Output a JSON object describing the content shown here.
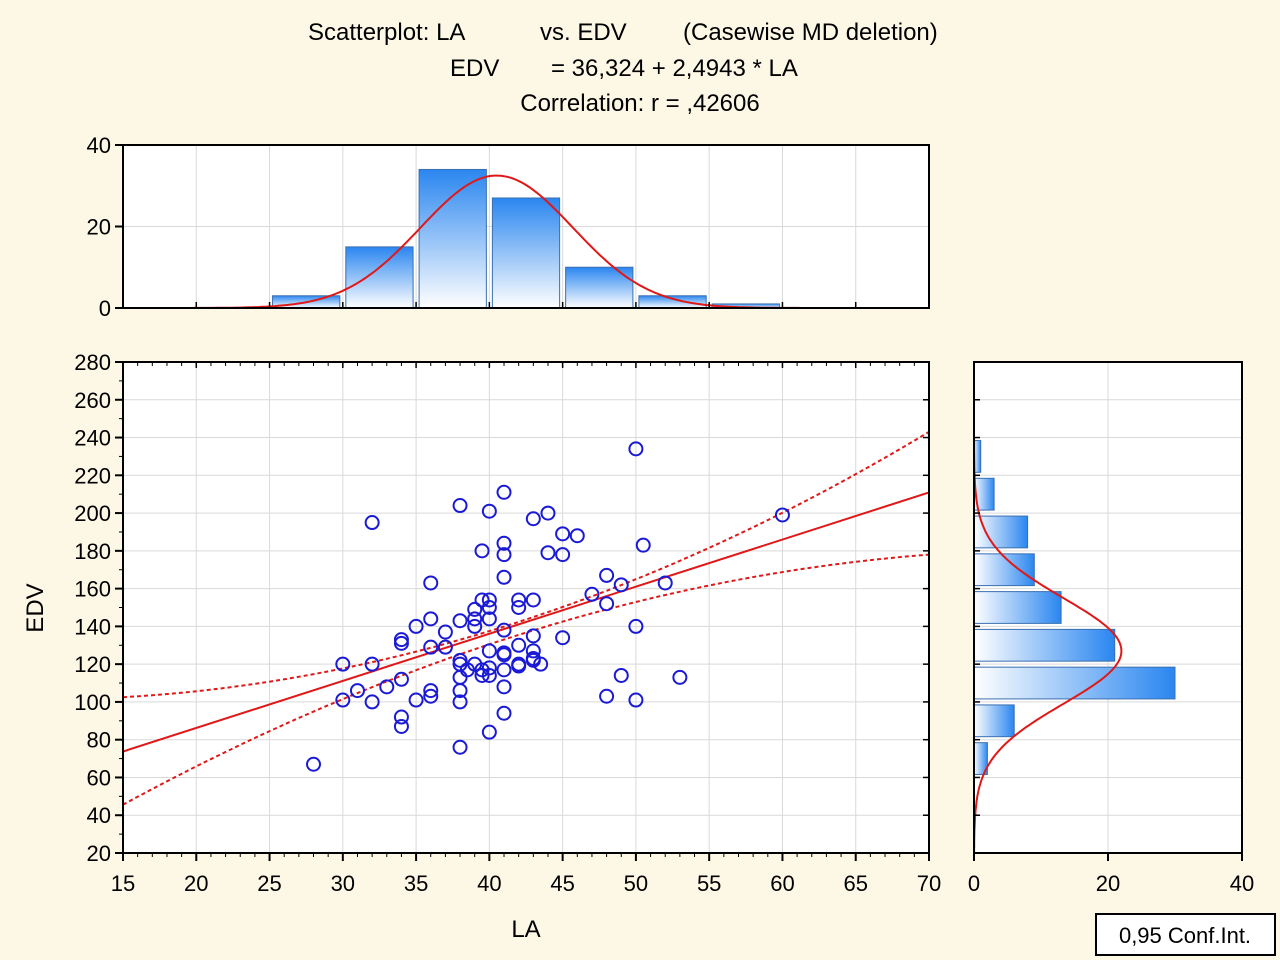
{
  "title": {
    "line1_part1": "Scatterplot: LA",
    "line1_part2": "vs. EDV",
    "line1_part3": "(Casewise MD deletion)",
    "line2_part1": "EDV",
    "line2_part2": "= 36,324 + 2,4943 * LA",
    "line3": "Correlation: r = ,42606"
  },
  "legend_box": {
    "label": "0,95 Conf.Int."
  },
  "colors": {
    "background": "#fdf8e6",
    "points": "#1a1ad6",
    "fit_line": "#e01818",
    "bar_top": "#2a86f0",
    "bar_bottom": "#ffffff",
    "bar_stroke": "#3a6fb0",
    "grid": "#d9d9d9"
  },
  "chart_data": [
    {
      "type": "scatter",
      "xlabel": "LA",
      "ylabel": "EDV",
      "xlim": [
        15,
        70
      ],
      "ylim": [
        20,
        280
      ],
      "xticks": [
        "15",
        "20",
        "25",
        "30",
        "35",
        "40",
        "45",
        "50",
        "55",
        "60",
        "65",
        "70"
      ],
      "yticks": [
        "20",
        "40",
        "60",
        "80",
        "100",
        "120",
        "140",
        "160",
        "180",
        "200",
        "220",
        "240",
        "260",
        "280"
      ],
      "grid": true,
      "regression": {
        "intercept": 36.324,
        "slope": 2.4943,
        "r": 0.42606
      },
      "confidence_band": {
        "level": 0.95,
        "lower": [
          [
            15,
            45.6
          ],
          [
            40,
            130.5
          ],
          [
            70,
            178
          ]
        ],
        "upper": [
          [
            15,
            102.5
          ],
          [
            40,
            137.5
          ],
          [
            70,
            243
          ]
        ]
      },
      "points": [
        [
          28,
          67
        ],
        [
          30,
          120
        ],
        [
          30,
          101
        ],
        [
          31,
          106
        ],
        [
          32,
          195
        ],
        [
          32,
          120
        ],
        [
          32,
          100
        ],
        [
          33,
          108
        ],
        [
          34,
          133
        ],
        [
          34,
          131
        ],
        [
          34,
          112
        ],
        [
          34,
          92
        ],
        [
          34,
          87
        ],
        [
          35,
          140
        ],
        [
          35,
          101
        ],
        [
          36,
          163
        ],
        [
          36,
          144
        ],
        [
          36,
          129
        ],
        [
          36,
          106
        ],
        [
          36,
          103
        ],
        [
          37,
          137
        ],
        [
          37,
          129
        ],
        [
          38,
          204
        ],
        [
          38,
          143
        ],
        [
          38,
          122
        ],
        [
          38,
          120
        ],
        [
          38,
          113
        ],
        [
          38,
          106
        ],
        [
          38,
          100
        ],
        [
          38,
          76
        ],
        [
          38.5,
          117
        ],
        [
          39,
          149
        ],
        [
          39,
          144
        ],
        [
          39,
          140
        ],
        [
          39,
          120
        ],
        [
          39.5,
          180
        ],
        [
          39.5,
          154
        ],
        [
          39.5,
          117
        ],
        [
          39.5,
          114
        ],
        [
          40,
          201
        ],
        [
          40,
          154
        ],
        [
          40,
          150
        ],
        [
          40,
          144
        ],
        [
          40,
          127
        ],
        [
          40,
          118
        ],
        [
          40,
          114
        ],
        [
          40,
          84
        ],
        [
          41,
          211
        ],
        [
          41,
          184
        ],
        [
          41,
          178
        ],
        [
          41,
          166
        ],
        [
          41,
          138
        ],
        [
          41,
          126
        ],
        [
          41,
          125
        ],
        [
          41,
          117
        ],
        [
          41,
          108
        ],
        [
          41,
          94
        ],
        [
          42,
          154
        ],
        [
          42,
          150
        ],
        [
          42,
          130
        ],
        [
          42,
          120
        ],
        [
          42,
          119
        ],
        [
          43,
          197
        ],
        [
          43,
          154
        ],
        [
          43,
          135
        ],
        [
          43,
          127
        ],
        [
          43,
          123
        ],
        [
          43,
          122
        ],
        [
          43.5,
          120
        ],
        [
          44,
          200
        ],
        [
          44,
          179
        ],
        [
          45,
          189
        ],
        [
          45,
          178
        ],
        [
          45,
          134
        ],
        [
          46,
          188
        ],
        [
          47,
          157
        ],
        [
          48,
          167
        ],
        [
          48,
          152
        ],
        [
          48,
          103
        ],
        [
          49,
          162
        ],
        [
          49,
          114
        ],
        [
          50,
          234
        ],
        [
          50,
          140
        ],
        [
          50,
          101
        ],
        [
          50.5,
          183
        ],
        [
          52,
          163
        ],
        [
          53,
          113
        ],
        [
          60,
          199
        ]
      ]
    },
    {
      "type": "bar",
      "orientation": "vertical",
      "description_axis": "LA",
      "bins": [
        [
          25,
          30
        ],
        [
          30,
          35
        ],
        [
          35,
          40
        ],
        [
          40,
          45
        ],
        [
          45,
          50
        ],
        [
          50,
          55
        ],
        [
          55,
          60
        ]
      ],
      "values": [
        3,
        15,
        34,
        27,
        10,
        3,
        1
      ],
      "ylim": [
        0,
        40
      ],
      "yticks": [
        "0",
        "20",
        "40"
      ],
      "normal_fit": {
        "mean": 40.5,
        "peak": 32.5
      }
    },
    {
      "type": "bar",
      "orientation": "horizontal",
      "description_axis": "EDV",
      "bins": [
        [
          60,
          80
        ],
        [
          80,
          100
        ],
        [
          100,
          120
        ],
        [
          120,
          140
        ],
        [
          140,
          160
        ],
        [
          160,
          180
        ],
        [
          180,
          200
        ],
        [
          200,
          220
        ],
        [
          220,
          240
        ]
      ],
      "values": [
        2,
        6,
        30,
        21,
        13,
        9,
        8,
        3,
        1
      ],
      "xlim": [
        0,
        40
      ],
      "xticks": [
        "0",
        "20",
        "40"
      ],
      "normal_fit": {
        "mean": 127,
        "peak": 22
      }
    }
  ]
}
